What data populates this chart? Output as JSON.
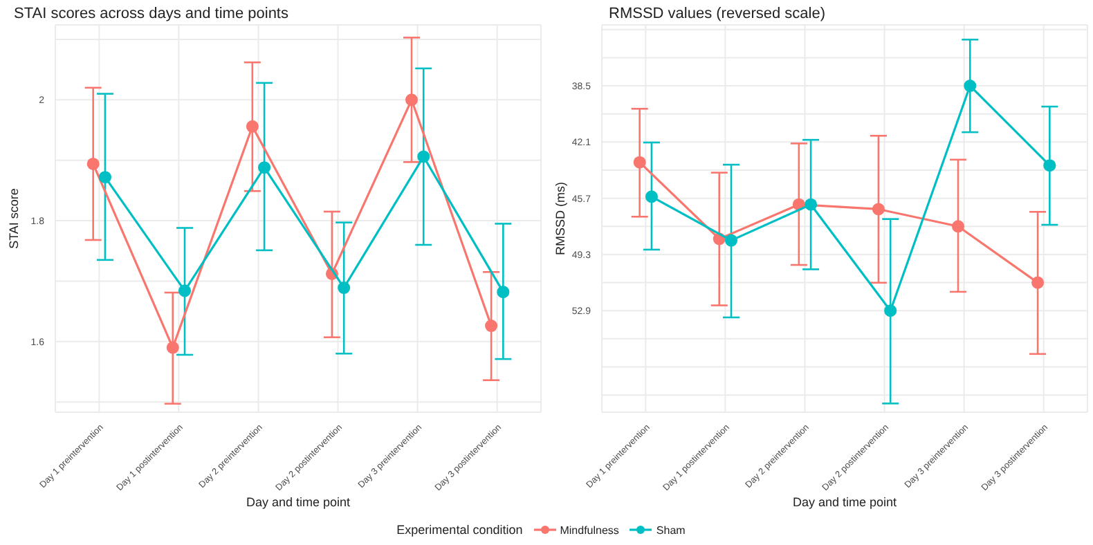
{
  "chart_data": [
    {
      "type": "line",
      "title": "STAI scores across days and time points",
      "xlabel": "Day and time point",
      "ylabel": "STAI score",
      "legend_title": "Experimental condition",
      "legend": "bottom",
      "grid": true,
      "marker": "circle",
      "categories": [
        "Day 1 preintervention",
        "Day 1 postintervention",
        "Day 2 preintervention",
        "Day 2 postintervention",
        "Day 3 preintervention",
        "Day 3 postintervention"
      ],
      "ylim": [
        1.483,
        2.124
      ],
      "yticks": [
        {
          "value": 1.5,
          "label": null
        },
        1.6,
        {
          "value": 1.7,
          "label": null
        },
        1.8,
        {
          "value": 1.9,
          "label": null
        },
        2.0,
        {
          "value": 2.1,
          "label": null
        }
      ],
      "series": [
        {
          "name": "Mindfulness",
          "color": "#f8766d",
          "values": [
            1.894,
            1.59,
            1.956,
            1.712,
            2.0,
            1.626
          ],
          "errors": [
            [
              1.768,
              2.02
            ],
            [
              1.497,
              1.681
            ],
            [
              1.849,
              2.062
            ],
            [
              1.607,
              1.815
            ],
            [
              1.897,
              2.103
            ],
            [
              1.536,
              1.715
            ]
          ]
        },
        {
          "name": "Sham",
          "color": "#00bfc4",
          "values": [
            1.872,
            1.684,
            1.888,
            1.689,
            1.906,
            1.682
          ],
          "errors": [
            [
              1.735,
              2.01
            ],
            [
              1.578,
              1.788
            ],
            [
              1.751,
              2.028
            ],
            [
              1.58,
              1.797
            ],
            [
              1.76,
              2.052
            ],
            [
              1.571,
              1.795
            ]
          ]
        }
      ]
    },
    {
      "type": "line",
      "title": "RMSSD values (reversed scale)",
      "xlabel": "Day and time point",
      "ylabel": "RMSSD (ms)",
      "grid": true,
      "marker": "circle",
      "categories": [
        "Day 1 preintervention",
        "Day 1 postintervention",
        "Day 2 preintervention",
        "Day 2 postintervention",
        "Day 3 preintervention",
        "Day 3 postintervention"
      ],
      "ylim": [
        59.4,
        34.6
      ],
      "yticks": [
        {
          "value": 34.9,
          "label": null
        },
        {
          "value": 36.7,
          "label": null
        },
        38.5,
        {
          "value": 40.3,
          "label": null
        },
        42.1,
        {
          "value": 43.9,
          "label": null
        },
        45.7,
        {
          "value": 47.5,
          "label": null
        },
        49.3,
        {
          "value": 51.1,
          "label": null
        },
        52.9,
        {
          "value": 54.7,
          "label": null
        },
        {
          "value": 56.5,
          "label": null
        },
        {
          "value": 58.3,
          "label": null
        }
      ],
      "series": [
        {
          "color": "#f8766d",
          "values": [
            43.4,
            48.3,
            46.1,
            46.4,
            47.5,
            51.1
          ],
          "errors": [
            [
              39.97,
              46.88
            ],
            [
              44.06,
              52.56
            ],
            [
              42.19,
              49.97
            ],
            [
              41.7,
              51.11
            ],
            [
              43.23,
              51.69
            ],
            [
              46.57,
              55.67
            ]
          ]
        },
        {
          "color": "#00bfc4",
          "values": [
            45.6,
            48.4,
            46.1,
            52.9,
            38.5,
            43.6
          ],
          "errors": [
            [
              42.13,
              48.99
            ],
            [
              43.55,
              53.33
            ],
            [
              41.96,
              50.25
            ],
            [
              47.03,
              58.84
            ],
            [
              35.54,
              41.47
            ],
            [
              39.83,
              47.4
            ]
          ]
        }
      ]
    }
  ]
}
